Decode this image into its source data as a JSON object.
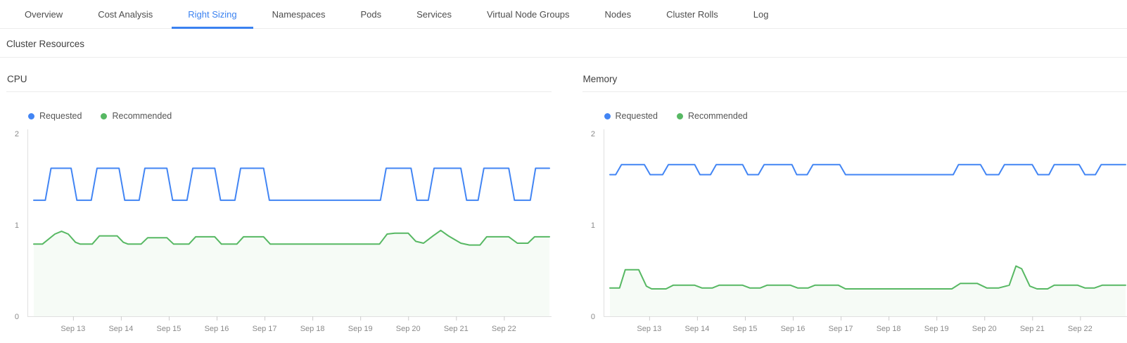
{
  "tabs": [
    {
      "label": "Overview",
      "active": false
    },
    {
      "label": "Cost Analysis",
      "active": false
    },
    {
      "label": "Right Sizing",
      "active": true
    },
    {
      "label": "Namespaces",
      "active": false
    },
    {
      "label": "Pods",
      "active": false
    },
    {
      "label": "Services",
      "active": false
    },
    {
      "label": "Virtual Node Groups",
      "active": false
    },
    {
      "label": "Nodes",
      "active": false
    },
    {
      "label": "Cluster Rolls",
      "active": false
    },
    {
      "label": "Log",
      "active": false
    }
  ],
  "section": {
    "title": "Cluster Resources"
  },
  "colors": {
    "accent": "#3b82f0",
    "requested": "#4285f4",
    "recommended": "#57b863",
    "area_fill": "#57b863",
    "axis_line": "#e0e0e0",
    "tick_line": "#cccccc"
  },
  "chart_data": [
    {
      "type": "line",
      "title": "CPU",
      "xlabel": "",
      "ylabel": "",
      "xlim": [
        12.15,
        22.95
      ],
      "ylim": [
        0,
        2
      ],
      "y_ticks": [
        0,
        1,
        2
      ],
      "x_tick_days": [
        13,
        14,
        15,
        16,
        17,
        18,
        19,
        20,
        21,
        22
      ],
      "x_tick_labels": [
        "Sep 13",
        "Sep 14",
        "Sep 15",
        "Sep 16",
        "Sep 17",
        "Sep 18",
        "Sep 19",
        "Sep 20",
        "Sep 21",
        "Sep 22"
      ],
      "grid": false,
      "legend_position": "top-left",
      "series": [
        {
          "name": "Requested",
          "color": "#4285f4",
          "area": false,
          "points": [
            [
              12.18,
              1.27
            ],
            [
              12.42,
              1.27
            ],
            [
              12.54,
              1.62
            ],
            [
              12.96,
              1.62
            ],
            [
              13.08,
              1.27
            ],
            [
              13.38,
              1.27
            ],
            [
              13.5,
              1.62
            ],
            [
              13.96,
              1.62
            ],
            [
              14.08,
              1.27
            ],
            [
              14.38,
              1.27
            ],
            [
              14.5,
              1.62
            ],
            [
              14.96,
              1.62
            ],
            [
              15.08,
              1.27
            ],
            [
              15.38,
              1.27
            ],
            [
              15.5,
              1.62
            ],
            [
              15.96,
              1.62
            ],
            [
              16.08,
              1.27
            ],
            [
              16.38,
              1.27
            ],
            [
              16.5,
              1.62
            ],
            [
              16.98,
              1.62
            ],
            [
              17.1,
              1.27
            ],
            [
              19.42,
              1.27
            ],
            [
              19.54,
              1.62
            ],
            [
              20.06,
              1.62
            ],
            [
              20.18,
              1.27
            ],
            [
              20.42,
              1.27
            ],
            [
              20.54,
              1.62
            ],
            [
              21.1,
              1.62
            ],
            [
              21.22,
              1.27
            ],
            [
              21.46,
              1.27
            ],
            [
              21.58,
              1.62
            ],
            [
              22.1,
              1.62
            ],
            [
              22.22,
              1.27
            ],
            [
              22.55,
              1.27
            ],
            [
              22.66,
              1.62
            ],
            [
              22.95,
              1.62
            ]
          ]
        },
        {
          "name": "Recommended",
          "color": "#57b863",
          "area": true,
          "points": [
            [
              12.18,
              0.79
            ],
            [
              12.36,
              0.79
            ],
            [
              12.62,
              0.9
            ],
            [
              12.76,
              0.93
            ],
            [
              12.9,
              0.9
            ],
            [
              13.05,
              0.81
            ],
            [
              13.15,
              0.79
            ],
            [
              13.4,
              0.79
            ],
            [
              13.55,
              0.88
            ],
            [
              13.92,
              0.88
            ],
            [
              14.05,
              0.81
            ],
            [
              14.15,
              0.79
            ],
            [
              14.42,
              0.79
            ],
            [
              14.56,
              0.86
            ],
            [
              14.96,
              0.86
            ],
            [
              15.1,
              0.79
            ],
            [
              15.42,
              0.79
            ],
            [
              15.56,
              0.87
            ],
            [
              15.96,
              0.87
            ],
            [
              16.1,
              0.79
            ],
            [
              16.42,
              0.79
            ],
            [
              16.56,
              0.87
            ],
            [
              16.98,
              0.87
            ],
            [
              17.12,
              0.79
            ],
            [
              19.4,
              0.79
            ],
            [
              19.56,
              0.9
            ],
            [
              19.72,
              0.91
            ],
            [
              20.0,
              0.91
            ],
            [
              20.16,
              0.82
            ],
            [
              20.32,
              0.8
            ],
            [
              20.52,
              0.88
            ],
            [
              20.68,
              0.94
            ],
            [
              20.84,
              0.88
            ],
            [
              21.1,
              0.8
            ],
            [
              21.28,
              0.78
            ],
            [
              21.5,
              0.78
            ],
            [
              21.64,
              0.87
            ],
            [
              22.1,
              0.87
            ],
            [
              22.28,
              0.8
            ],
            [
              22.5,
              0.8
            ],
            [
              22.64,
              0.87
            ],
            [
              22.95,
              0.87
            ]
          ]
        }
      ]
    },
    {
      "type": "line",
      "title": "Memory",
      "xlabel": "",
      "ylabel": "",
      "xlim": [
        12.15,
        22.95
      ],
      "ylim": [
        0,
        2
      ],
      "y_ticks": [
        0,
        1,
        2
      ],
      "x_tick_days": [
        13,
        14,
        15,
        16,
        17,
        18,
        19,
        20,
        21,
        22
      ],
      "x_tick_labels": [
        "Sep 13",
        "Sep 14",
        "Sep 15",
        "Sep 16",
        "Sep 17",
        "Sep 18",
        "Sep 19",
        "Sep 20",
        "Sep 21",
        "Sep 22"
      ],
      "grid": false,
      "legend_position": "top-left",
      "series": [
        {
          "name": "Requested",
          "color": "#4285f4",
          "area": false,
          "points": [
            [
              12.18,
              1.55
            ],
            [
              12.3,
              1.55
            ],
            [
              12.42,
              1.66
            ],
            [
              12.9,
              1.66
            ],
            [
              13.02,
              1.55
            ],
            [
              13.28,
              1.55
            ],
            [
              13.4,
              1.66
            ],
            [
              13.95,
              1.66
            ],
            [
              14.06,
              1.55
            ],
            [
              14.28,
              1.55
            ],
            [
              14.4,
              1.66
            ],
            [
              14.95,
              1.66
            ],
            [
              15.06,
              1.55
            ],
            [
              15.28,
              1.55
            ],
            [
              15.4,
              1.66
            ],
            [
              15.98,
              1.66
            ],
            [
              16.08,
              1.55
            ],
            [
              16.3,
              1.55
            ],
            [
              16.42,
              1.66
            ],
            [
              16.98,
              1.66
            ],
            [
              17.1,
              1.55
            ],
            [
              19.35,
              1.55
            ],
            [
              19.46,
              1.66
            ],
            [
              19.92,
              1.66
            ],
            [
              20.04,
              1.55
            ],
            [
              20.3,
              1.55
            ],
            [
              20.42,
              1.66
            ],
            [
              21.0,
              1.66
            ],
            [
              21.12,
              1.55
            ],
            [
              21.35,
              1.55
            ],
            [
              21.46,
              1.66
            ],
            [
              21.98,
              1.66
            ],
            [
              22.1,
              1.55
            ],
            [
              22.32,
              1.55
            ],
            [
              22.44,
              1.66
            ],
            [
              22.95,
              1.66
            ]
          ]
        },
        {
          "name": "Recommended",
          "color": "#57b863",
          "area": true,
          "points": [
            [
              12.18,
              0.31
            ],
            [
              12.38,
              0.31
            ],
            [
              12.5,
              0.51
            ],
            [
              12.78,
              0.51
            ],
            [
              12.94,
              0.33
            ],
            [
              13.05,
              0.3
            ],
            [
              13.35,
              0.3
            ],
            [
              13.5,
              0.34
            ],
            [
              13.95,
              0.34
            ],
            [
              14.1,
              0.31
            ],
            [
              14.32,
              0.31
            ],
            [
              14.46,
              0.34
            ],
            [
              14.95,
              0.34
            ],
            [
              15.1,
              0.31
            ],
            [
              15.32,
              0.31
            ],
            [
              15.46,
              0.34
            ],
            [
              15.95,
              0.34
            ],
            [
              16.1,
              0.31
            ],
            [
              16.32,
              0.31
            ],
            [
              16.46,
              0.34
            ],
            [
              16.95,
              0.34
            ],
            [
              17.1,
              0.3
            ],
            [
              19.32,
              0.3
            ],
            [
              19.5,
              0.36
            ],
            [
              19.85,
              0.36
            ],
            [
              20.05,
              0.31
            ],
            [
              20.3,
              0.31
            ],
            [
              20.52,
              0.34
            ],
            [
              20.66,
              0.55
            ],
            [
              20.78,
              0.52
            ],
            [
              20.95,
              0.33
            ],
            [
              21.1,
              0.3
            ],
            [
              21.32,
              0.3
            ],
            [
              21.46,
              0.34
            ],
            [
              21.95,
              0.34
            ],
            [
              22.1,
              0.31
            ],
            [
              22.3,
              0.31
            ],
            [
              22.46,
              0.34
            ],
            [
              22.95,
              0.34
            ]
          ]
        }
      ]
    }
  ]
}
